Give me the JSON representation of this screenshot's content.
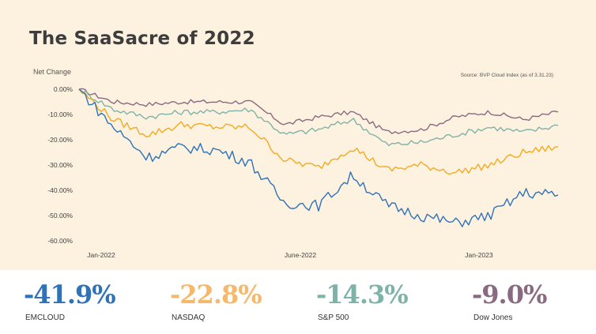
{
  "title": "The SaaSacre of 2022",
  "source": "Source: BVP Cloud Index (as of 3.31.23)",
  "chart_data": {
    "type": "line",
    "title": "The SaaSacre of 2022",
    "ylabel": "Net Change",
    "ylim": [
      -60,
      0
    ],
    "yticks": [
      "0.00%",
      "-10.00%",
      "-20.00%",
      "-30.00%",
      "-40.00%",
      "-50.00%",
      "-60.00%"
    ],
    "xlabels": [
      "Jan-2022",
      "June-2022",
      "Jan-2023"
    ],
    "x": [
      "2022-01",
      "2022-02",
      "2022-03",
      "2022-04",
      "2022-05",
      "2022-06",
      "2022-07",
      "2022-08",
      "2022-09",
      "2022-10",
      "2022-11",
      "2022-12",
      "2023-01",
      "2023-02",
      "2023-03"
    ],
    "series": [
      {
        "name": "Dow Jones",
        "color": "#8a6a80",
        "values": [
          0,
          -5,
          -6,
          -5,
          -5,
          -5,
          -14,
          -11,
          -9,
          -17,
          -16,
          -11,
          -9,
          -12,
          -9.0
        ]
      },
      {
        "name": "S&P 500",
        "color": "#7fb3a8",
        "values": [
          0,
          -8,
          -11,
          -9,
          -9,
          -8,
          -18,
          -16,
          -12,
          -22,
          -21,
          -18,
          -15,
          -17,
          -14.3
        ]
      },
      {
        "name": "NASDAQ",
        "color": "#f0ab1f",
        "values": [
          0,
          -12,
          -18,
          -14,
          -15,
          -15,
          -28,
          -31,
          -23,
          -32,
          -30,
          -33,
          -30,
          -25,
          -22.8
        ]
      },
      {
        "name": "EMCLOUD",
        "color": "#2f72b8",
        "values": [
          0,
          -15,
          -27,
          -23,
          -24,
          -29,
          -45,
          -46,
          -34,
          -46,
          -50,
          -53,
          -50,
          -41,
          -41.9
        ]
      }
    ]
  },
  "stats": [
    {
      "value": "-41.9%",
      "label": "EMCLOUD",
      "color": "#2f72b8"
    },
    {
      "value": "-22.8%",
      "label": "NASDAQ",
      "color": "#f6b86a"
    },
    {
      "value": "-14.3%",
      "label": "S&P 500",
      "color": "#7fb3a8"
    },
    {
      "value": "-9.0%",
      "label": "Dow Jones",
      "color": "#8a6a80"
    }
  ]
}
